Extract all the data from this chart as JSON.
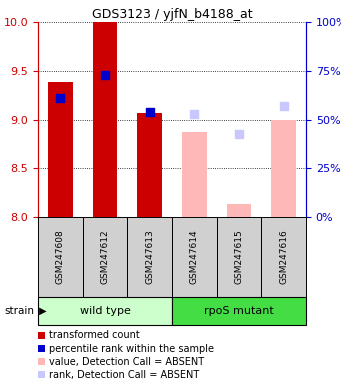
{
  "title": "GDS3123 / yjfN_b4188_at",
  "samples": [
    "GSM247608",
    "GSM247612",
    "GSM247613",
    "GSM247614",
    "GSM247615",
    "GSM247616"
  ],
  "groups": [
    {
      "name": "wild type",
      "indices": [
        0,
        1,
        2
      ],
      "color_light": "#b8f0b8",
      "color_dark": "#44cc44"
    },
    {
      "name": "rpoS mutant",
      "indices": [
        3,
        4,
        5
      ],
      "color_light": "#b8f0b8",
      "color_dark": "#44cc44"
    }
  ],
  "strain_label": "strain",
  "ylim": [
    8.0,
    10.0
  ],
  "yticks": [
    8.0,
    8.5,
    9.0,
    9.5,
    10.0
  ],
  "y2_ticks": [
    0,
    25,
    50,
    75,
    100
  ],
  "y_left_color": "#cc0000",
  "y_right_color": "#0000cc",
  "bars": [
    {
      "x": 0,
      "value": 9.38,
      "rank": 9.22,
      "absent": false,
      "color_bar": "#cc0000",
      "color_rank": "#0000cc"
    },
    {
      "x": 1,
      "value": 10.0,
      "rank": 9.46,
      "absent": false,
      "color_bar": "#cc0000",
      "color_rank": "#0000cc"
    },
    {
      "x": 2,
      "value": 9.07,
      "rank": 9.08,
      "absent": false,
      "color_bar": "#cc0000",
      "color_rank": "#0000cc"
    },
    {
      "x": 3,
      "value": 8.87,
      "rank": 9.06,
      "absent": true,
      "color_bar": "#ffb8b8",
      "color_rank": "#c8c8ff"
    },
    {
      "x": 4,
      "value": 8.13,
      "rank": 8.85,
      "absent": true,
      "color_bar": "#ffb8b8",
      "color_rank": "#c8c8ff"
    },
    {
      "x": 5,
      "value": 9.0,
      "rank": 9.14,
      "absent": true,
      "color_bar": "#ffb8b8",
      "color_rank": "#c8c8ff"
    }
  ],
  "legend_items": [
    {
      "label": "transformed count",
      "color": "#cc0000"
    },
    {
      "label": "percentile rank within the sample",
      "color": "#0000cc"
    },
    {
      "label": "value, Detection Call = ABSENT",
      "color": "#ffb8b8"
    },
    {
      "label": "rank, Detection Call = ABSENT",
      "color": "#c8c8ff"
    }
  ],
  "panel_color": "#d0d0d0",
  "bar_bottom": 8.0,
  "bar_width": 0.55,
  "dot_size": 28,
  "group_light_color": "#ccffcc",
  "group_dark_color": "#44dd44"
}
